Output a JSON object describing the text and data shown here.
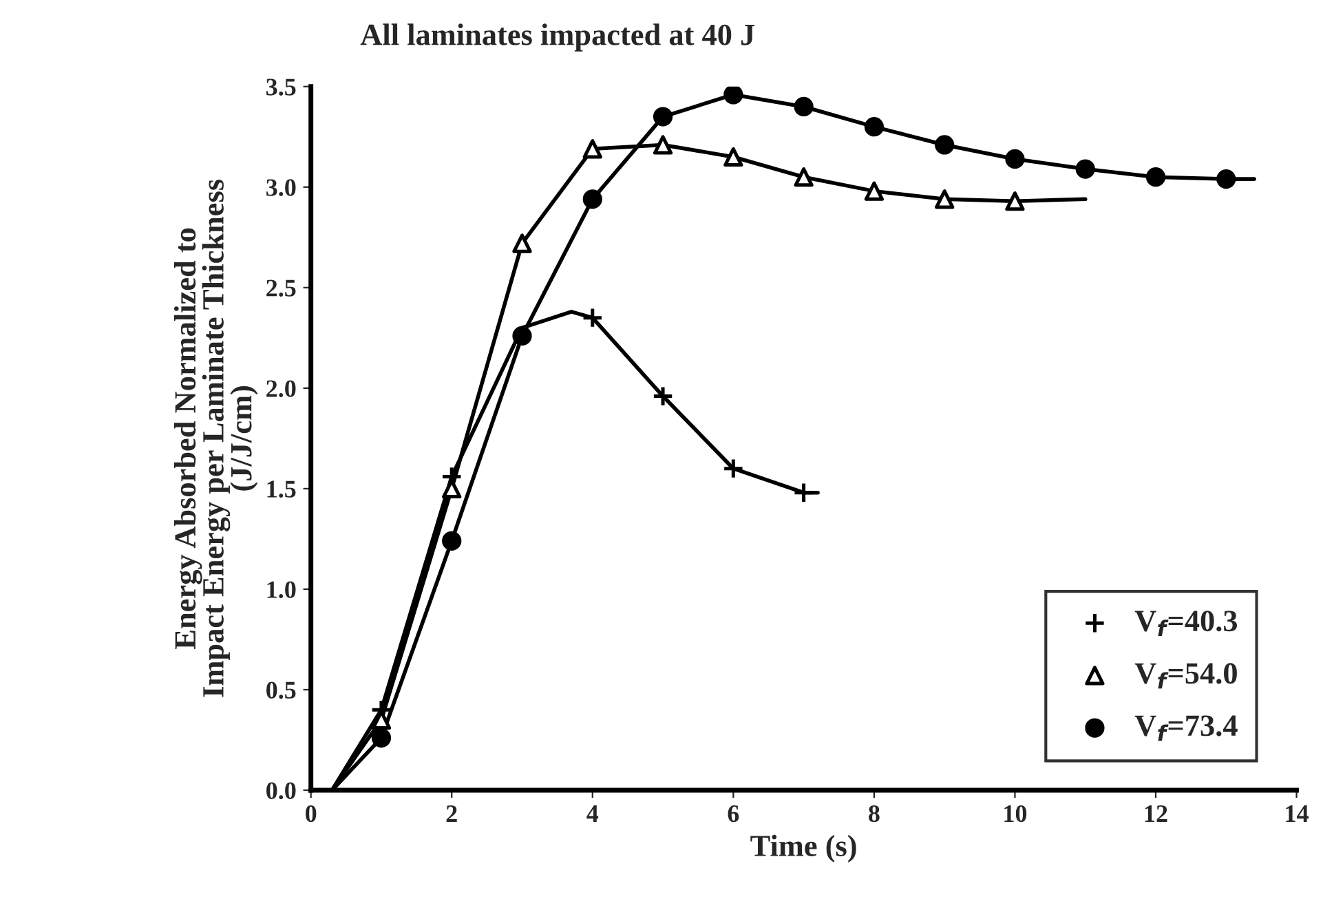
{
  "chart_data": {
    "type": "line",
    "title": "All laminates impacted at 40 J",
    "xlabel": "Time (s)",
    "ylabel": "Energy Absorbed Normalized to\nImpact Energy per Laminate Thickness\n(J/J/cm)",
    "xlim": [
      0,
      14
    ],
    "xticks": [
      0,
      2,
      4,
      6,
      8,
      10,
      12,
      14
    ],
    "ylim": [
      0,
      3.5
    ],
    "yticks": [
      {
        "value": 0,
        "label": "0.0"
      },
      {
        "value": 0.5,
        "label": "0.5"
      },
      {
        "value": 1,
        "label": "1.0"
      },
      {
        "value": 1.5,
        "label": "1.5"
      },
      {
        "value": 2,
        "label": "2.0"
      },
      {
        "value": 2.5,
        "label": "2.5"
      },
      {
        "value": 3,
        "label": "3.0"
      },
      {
        "value": 3.5,
        "label": "3.5"
      }
    ],
    "grid": false,
    "legend": "bottom right",
    "series": [
      {
        "color": "#000000",
        "marker": "none",
        "x": [
          0.3,
          1,
          2,
          3,
          3.7,
          4,
          5,
          6,
          7,
          7.2
        ],
        "values": [
          0,
          0.4,
          1.56,
          2.3,
          2.38,
          2.35,
          1.96,
          1.6,
          1.48,
          1.48
        ]
      },
      {
        "color": "#000000",
        "marker": "none",
        "x": [
          0.3,
          1,
          2,
          3,
          4,
          5,
          6,
          7,
          8,
          9,
          10,
          11
        ],
        "values": [
          0,
          0.35,
          1.5,
          2.72,
          3.19,
          3.21,
          3.15,
          3.05,
          2.98,
          2.94,
          2.93,
          2.94
        ]
      },
      {
        "color": "#000000",
        "marker": "none",
        "x": [
          0.3,
          1,
          2,
          3,
          4,
          5,
          6,
          7,
          8,
          9,
          10,
          11,
          12,
          13,
          13.4
        ],
        "values": [
          0,
          0.26,
          1.24,
          2.26,
          2.94,
          3.35,
          3.46,
          3.4,
          3.3,
          3.21,
          3.14,
          3.09,
          3.05,
          3.04,
          3.04
        ]
      },
      {
        "type": "scatter",
        "name": "V$_{f}$=40.3",
        "color": "#000000",
        "marker": "cross",
        "x": [
          1,
          2,
          3,
          4,
          5,
          6,
          7
        ],
        "values": [
          0.4,
          1.56,
          null,
          2.35,
          1.96,
          1.6,
          1.48
        ]
      },
      {
        "type": "scatter",
        "name": "V$_{f}$=54.0",
        "color": "#000000",
        "marker": "triangle",
        "x": [
          1,
          2,
          3,
          4,
          5,
          6,
          7,
          8,
          9,
          10
        ],
        "values": [
          0.35,
          1.5,
          2.72,
          3.19,
          3.21,
          3.15,
          3.05,
          2.98,
          2.94,
          2.93
        ]
      },
      {
        "type": "scatter",
        "name": "V$_{f}$=73.4",
        "color": "#000000",
        "marker": "circle",
        "x": [
          1,
          2,
          3,
          4,
          5,
          6,
          7,
          8,
          9,
          10,
          11,
          12,
          13
        ],
        "values": [
          0.26,
          1.24,
          2.26,
          2.94,
          3.35,
          3.46,
          3.4,
          3.3,
          3.21,
          3.14,
          3.09,
          3.05,
          3.04
        ]
      }
    ]
  }
}
